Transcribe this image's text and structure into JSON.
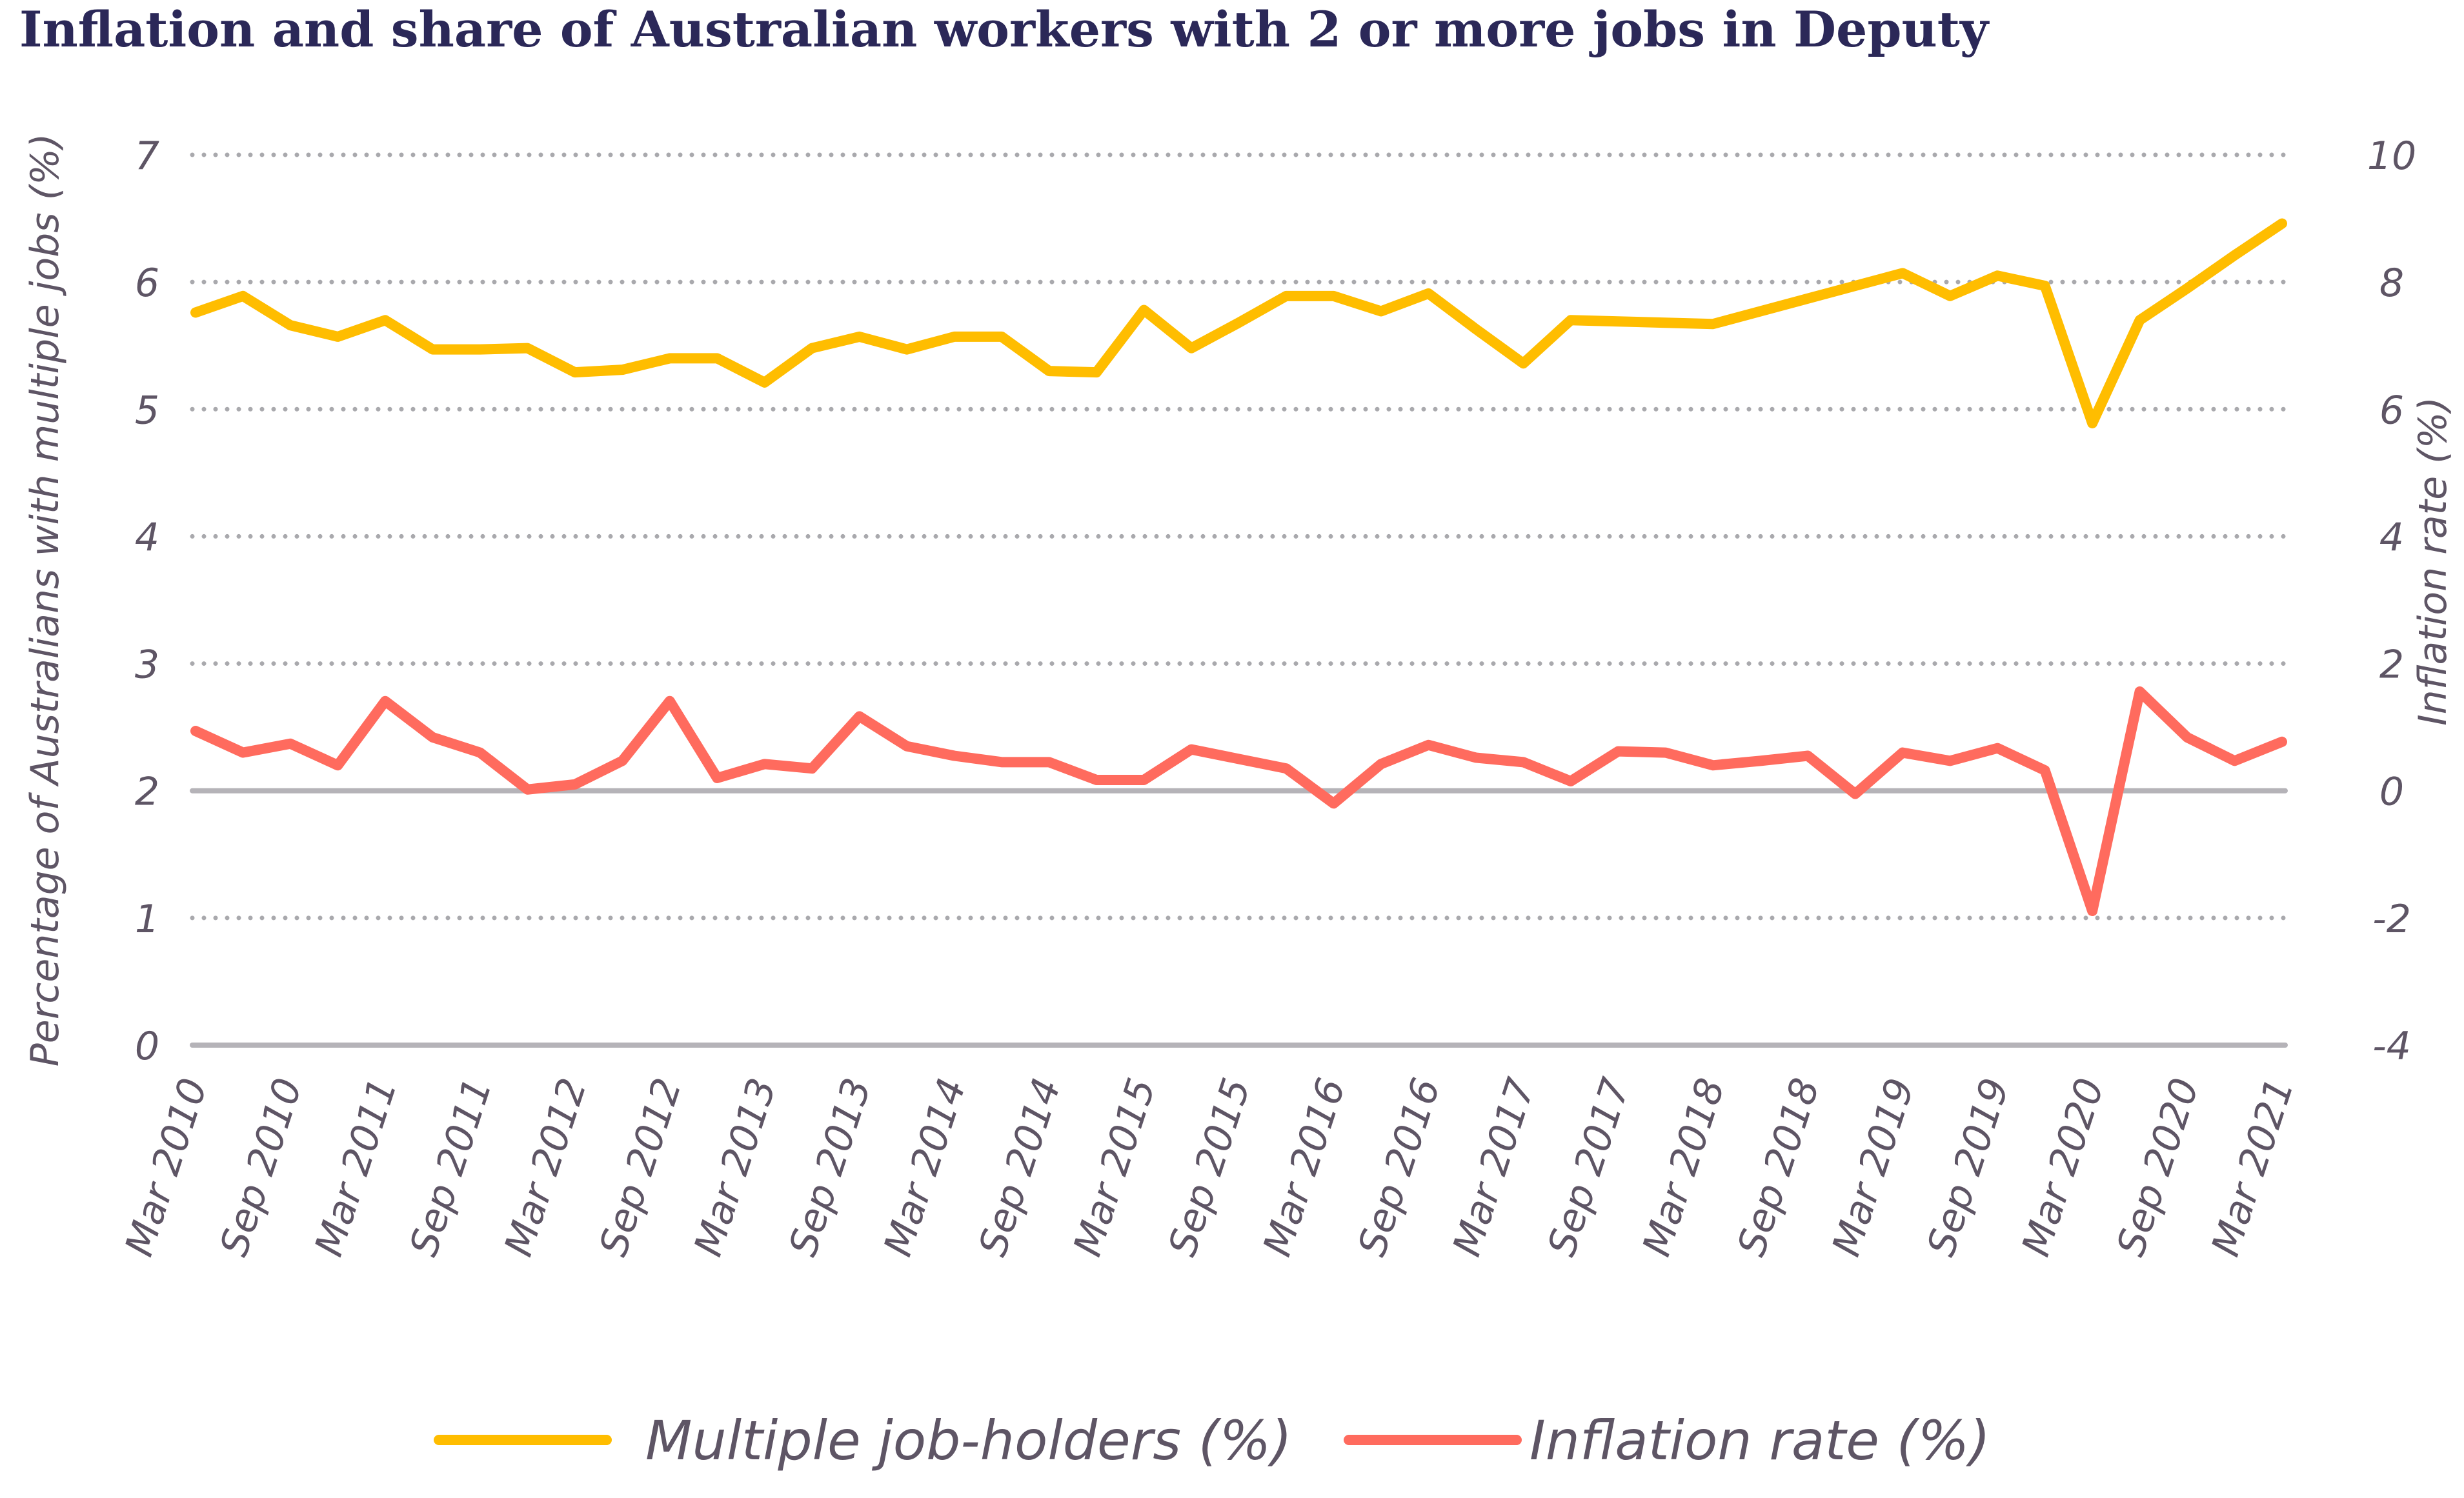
{
  "chart_data": {
    "type": "line",
    "title": "Inflation and share of Australian workers with 2 or more jobs in Deputy",
    "ylabel_left": "Percentage of Australians with multiple jobs (%)",
    "ylabel_right": "Inflation rate (%)",
    "ylim_left": [
      0,
      7
    ],
    "ylim_right": [
      -4,
      10
    ],
    "yticks_left": [
      "0",
      "1",
      "2",
      "3",
      "4",
      "5",
      "6",
      "7"
    ],
    "yticks_right": [
      "-4",
      "-2",
      "0",
      "2",
      "4",
      "6",
      "8",
      "10"
    ],
    "grid": true,
    "legend_position": "bottom",
    "x": [
      "Mar 2010",
      "Jun 2010",
      "Sep 2010",
      "Dec 2010",
      "Mar 2011",
      "Jun 2011",
      "Sep 2011",
      "Dec 2011",
      "Mar 2012",
      "Jun 2012",
      "Sep 2012",
      "Dec 2012",
      "Mar 2013",
      "Jun 2013",
      "Sep 2013",
      "Dec 2013",
      "Mar 2014",
      "Jun 2014",
      "Sep 2014",
      "Dec 2014",
      "Mar 2015",
      "Jun 2015",
      "Sep 2015",
      "Dec 2015",
      "Mar 2016",
      "Jun 2016",
      "Sep 2016",
      "Dec 2016",
      "Mar 2017",
      "Jun 2017",
      "Sep 2017",
      "Dec 2017",
      "Mar 2018",
      "Jun 2018",
      "Sep 2018",
      "Dec 2018",
      "Mar 2019",
      "Jun 2019",
      "Sep 2019",
      "Dec 2019",
      "Mar 2020",
      "Jun 2020",
      "Sep 2020",
      "Dec 2020",
      "Mar 2021"
    ],
    "xtick_labels": [
      "Mar 2010",
      "Sep 2010",
      "Mar 2011",
      "Sep 2011",
      "Mar 2012",
      "Sep 2012",
      "Mar 2013",
      "Sep 2013",
      "Mar 2014",
      "Sep 2014",
      "Mar 2015",
      "Sep 2015",
      "Mar 2016",
      "Sep 2016",
      "Mar 2017",
      "Sep 2017",
      "Mar 2018",
      "Sep 2018",
      "Mar 2019",
      "Sep 2019",
      "Mar 2020",
      "Sep 2020",
      "Mar 2021"
    ],
    "series": [
      {
        "name": "Multiple job-holders (%)",
        "axis": "left",
        "color": "#FFBD00",
        "values": [
          5.76,
          5.89,
          5.66,
          5.57,
          5.7,
          5.47,
          5.47,
          5.48,
          5.29,
          5.31,
          5.4,
          5.4,
          5.21,
          5.48,
          5.57,
          5.47,
          5.57,
          5.57,
          5.3,
          5.29,
          5.78,
          5.48,
          5.68,
          5.89,
          5.89,
          5.77,
          5.91,
          5.63,
          5.36,
          5.7,
          5.69,
          5.68,
          5.67,
          5.77,
          5.87,
          5.97,
          6.07,
          5.89,
          6.05,
          5.97,
          4.89,
          5.7,
          5.95,
          6.21,
          6.46
        ]
      },
      {
        "name": "Inflation rate (%)",
        "axis": "right",
        "color": "#FF6B5E",
        "values": [
          0.94,
          0.6,
          0.74,
          0.4,
          1.41,
          0.84,
          0.6,
          0.02,
          0.1,
          0.47,
          1.41,
          0.2,
          0.42,
          0.35,
          1.17,
          0.7,
          0.55,
          0.45,
          0.45,
          0.17,
          0.17,
          0.65,
          0.5,
          0.35,
          -0.2,
          0.42,
          0.72,
          0.52,
          0.45,
          0.15,
          0.62,
          0.6,
          0.4,
          0.47,
          0.55,
          -0.05,
          0.6,
          0.47,
          0.67,
          0.32,
          -1.89,
          1.56,
          0.84,
          0.47,
          0.77
        ]
      }
    ]
  }
}
